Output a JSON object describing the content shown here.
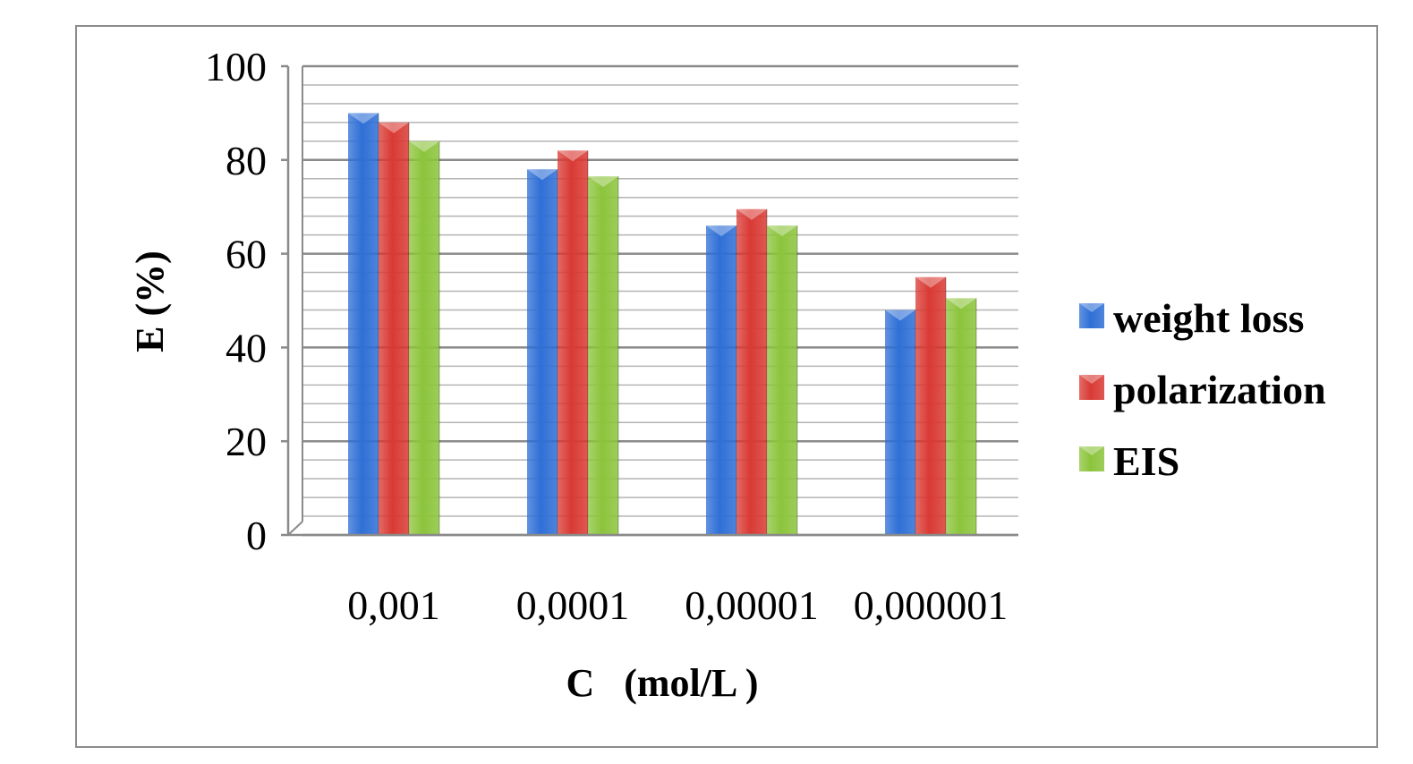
{
  "chart_data": {
    "type": "bar",
    "categories": [
      "0,001",
      "0,0001",
      "0,00001",
      "0,000001"
    ],
    "series": [
      {
        "name": "weight loss",
        "values": [
          90,
          78,
          66,
          48
        ],
        "color": "#2f6fd6"
      },
      {
        "name": "polarization",
        "values": [
          88,
          82,
          69.5,
          55
        ],
        "color": "#d93a34"
      },
      {
        "name": "EIS",
        "values": [
          84,
          76.5,
          66,
          50.5
        ],
        "color": "#8cc43c"
      }
    ],
    "xlabel": "C   (mol/L )",
    "ylabel": "E  (%)",
    "ylim": [
      0,
      100
    ],
    "yticks": [
      "0",
      "20",
      "40",
      "60",
      "80",
      "100"
    ],
    "grid": true,
    "legend_position": "right"
  }
}
